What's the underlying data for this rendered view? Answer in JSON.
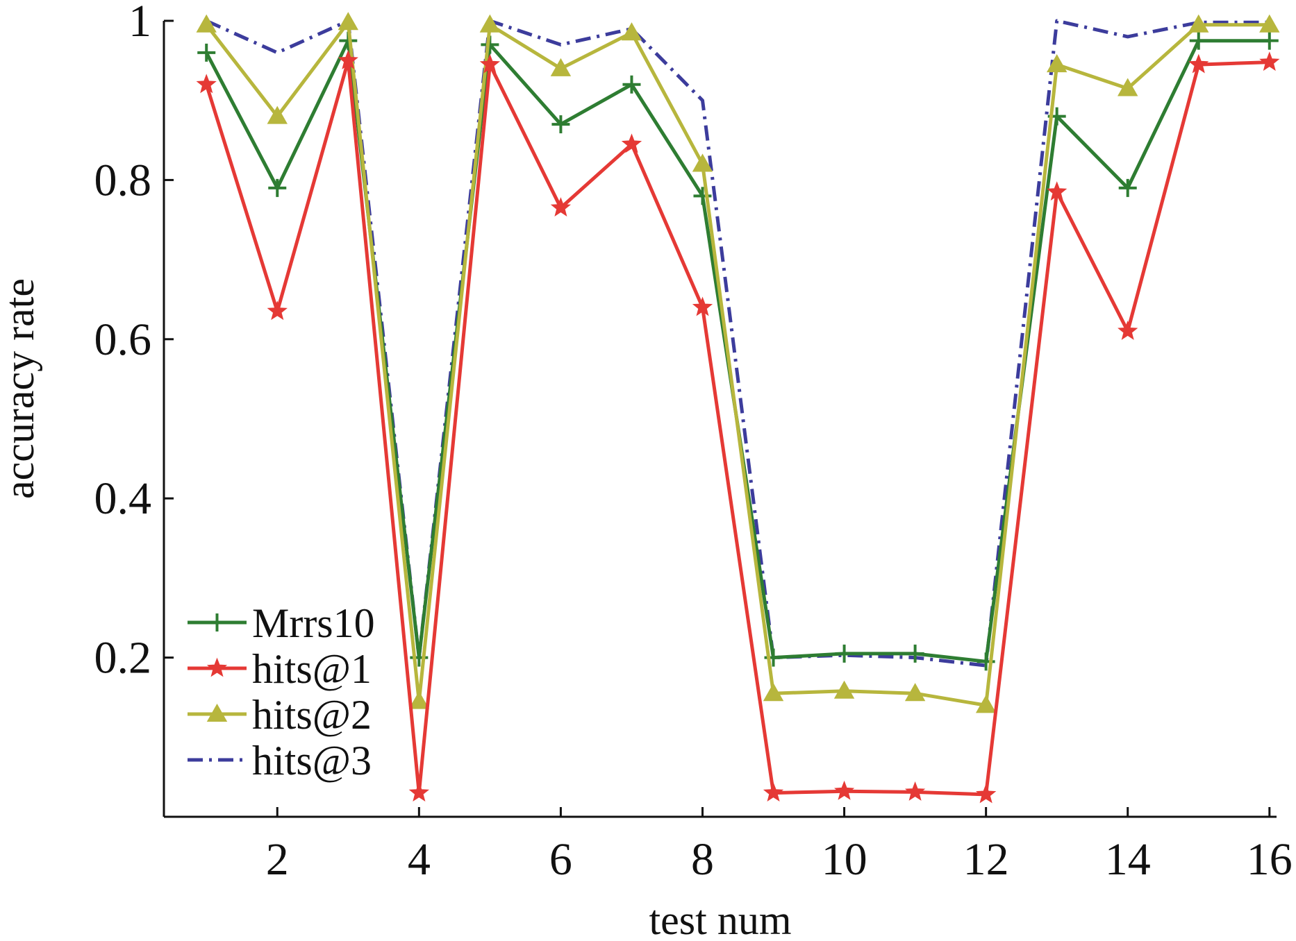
{
  "chart_data": {
    "type": "line",
    "xlabel": "test num",
    "ylabel": "accuracy rate",
    "xlim": [
      0.4,
      16.1
    ],
    "ylim": [
      0,
      1
    ],
    "x_ticks": [
      2,
      4,
      6,
      8,
      10,
      12,
      14,
      16
    ],
    "y_ticks": [
      0.2,
      0.4,
      0.6,
      0.8,
      1
    ],
    "y_tick_labels": [
      "0.2",
      "0.4",
      "0.6",
      "0.8",
      "1"
    ],
    "grid": false,
    "legend_position": "bottom-left",
    "x": [
      1,
      2,
      3,
      4,
      5,
      6,
      7,
      8,
      9,
      10,
      11,
      12,
      13,
      14,
      15,
      16
    ],
    "series": [
      {
        "name": "Mrrs10",
        "color": "#2e7d32",
        "line_style": "solid",
        "marker": "plus",
        "values": [
          0.96,
          0.79,
          0.975,
          0.2,
          0.97,
          0.87,
          0.92,
          0.78,
          0.2,
          0.205,
          0.205,
          0.195,
          0.88,
          0.79,
          0.975,
          0.975
        ]
      },
      {
        "name": "hits@1",
        "color": "#e53935",
        "line_style": "solid",
        "marker": "star",
        "values": [
          0.92,
          0.635,
          0.95,
          0.03,
          0.945,
          0.765,
          0.845,
          0.64,
          0.03,
          0.032,
          0.031,
          0.028,
          0.785,
          0.61,
          0.945,
          0.948
        ]
      },
      {
        "name": "hits@2",
        "color": "#b7b63d",
        "line_style": "solid",
        "marker": "triangle",
        "values": [
          0.995,
          0.88,
          0.998,
          0.145,
          0.995,
          0.94,
          0.985,
          0.82,
          0.155,
          0.158,
          0.155,
          0.14,
          0.945,
          0.915,
          0.995,
          0.995
        ]
      },
      {
        "name": "hits@3",
        "color": "#3c3c9c",
        "line_style": "dashdot",
        "marker": "none",
        "values": [
          1.0,
          0.96,
          1.0,
          0.2,
          1.0,
          0.97,
          0.99,
          0.9,
          0.2,
          0.203,
          0.2,
          0.19,
          1.0,
          0.98,
          0.998,
          0.998
        ]
      }
    ]
  }
}
